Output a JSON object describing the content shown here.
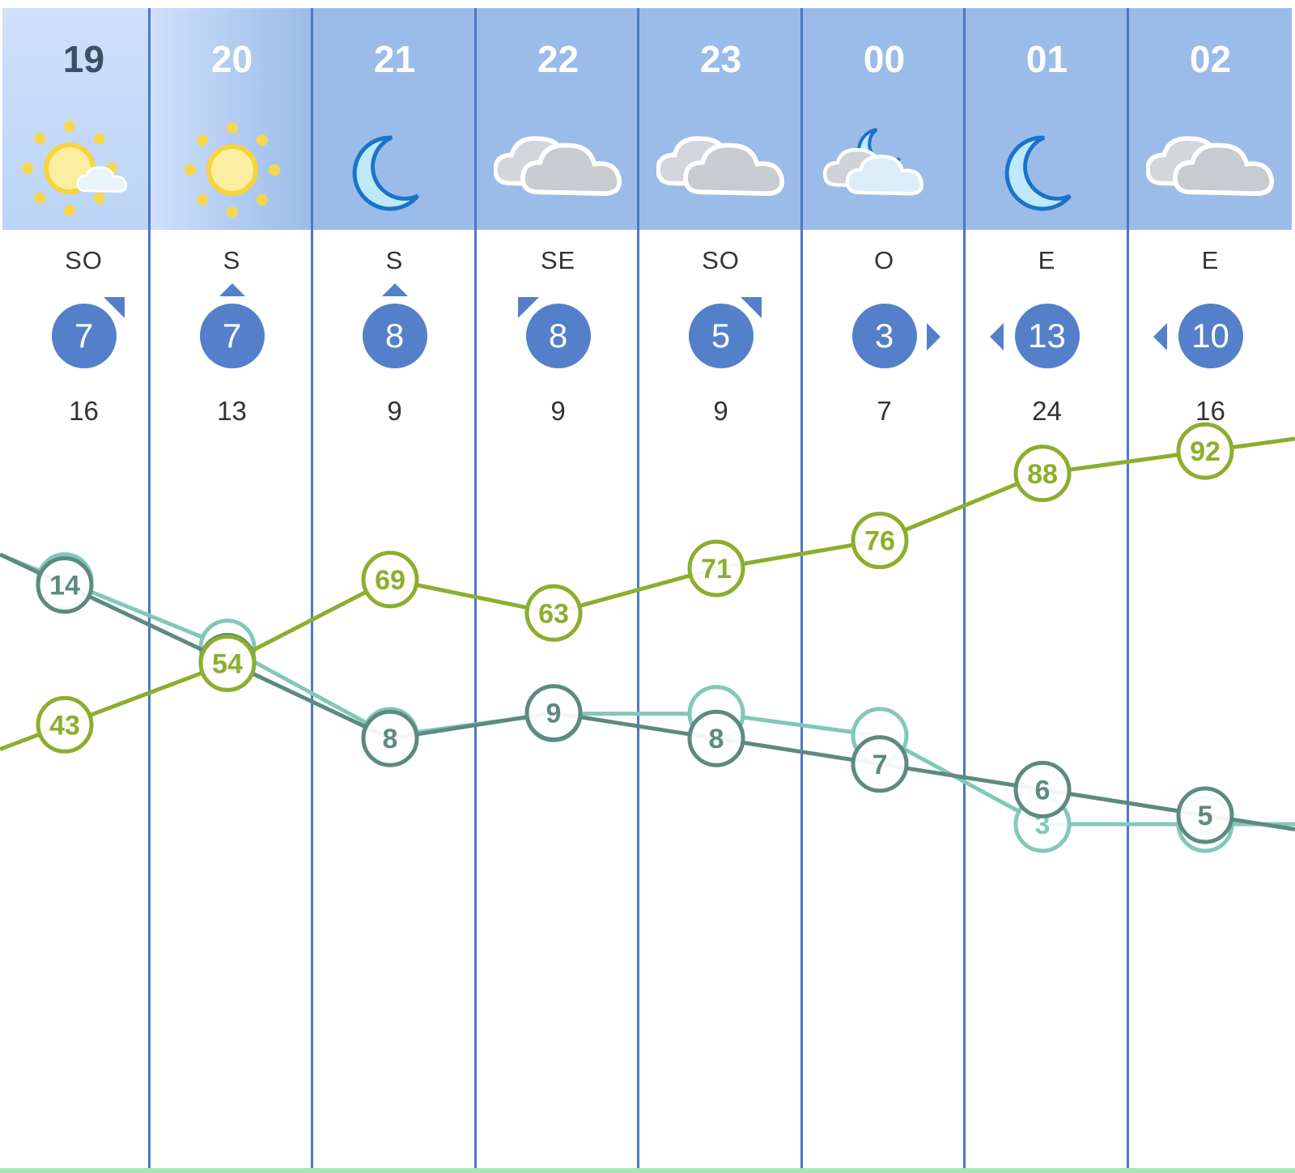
{
  "colors": {
    "header_bg": "#9bbce8",
    "divider": "#4a79c4",
    "wind_badge": "#5480c9",
    "humidity": "#8cae2e",
    "temperature": "#5d8a80",
    "dewpoint": "#82c8b8"
  },
  "columns": [
    {
      "hour": "19",
      "icon": "sun-cloud-icon",
      "dir": "SO",
      "wind": "7",
      "arrow": "ne",
      "gust": "16"
    },
    {
      "hour": "20",
      "icon": "sun-icon",
      "dir": "S",
      "wind": "7",
      "arrow": "n",
      "gust": "13"
    },
    {
      "hour": "21",
      "icon": "moon-icon",
      "dir": "S",
      "wind": "8",
      "arrow": "n",
      "gust": "9"
    },
    {
      "hour": "22",
      "icon": "cloud-icon",
      "dir": "SE",
      "wind": "8",
      "arrow": "nw",
      "gust": "9"
    },
    {
      "hour": "23",
      "icon": "cloud-icon",
      "dir": "SO",
      "wind": "5",
      "arrow": "ne",
      "gust": "9"
    },
    {
      "hour": "00",
      "icon": "moon-cloud-icon",
      "dir": "O",
      "wind": "3",
      "arrow": "e",
      "gust": "7"
    },
    {
      "hour": "01",
      "icon": "moon-icon",
      "dir": "E",
      "wind": "13",
      "arrow": "w",
      "gust": "24"
    },
    {
      "hour": "02",
      "icon": "cloud-icon",
      "dir": "E",
      "wind": "10",
      "arrow": "w",
      "gust": "16"
    }
  ],
  "chart_data": {
    "type": "line",
    "categories": [
      "19",
      "20",
      "21",
      "22",
      "23",
      "00",
      "01",
      "02"
    ],
    "series": [
      {
        "id": "humidity",
        "color": "#8cae2e",
        "values": [
          43,
          54,
          69,
          63,
          71,
          76,
          88,
          92
        ],
        "labels": [
          "43",
          "54",
          "69",
          "63",
          "71",
          "76",
          "88",
          "92"
        ]
      },
      {
        "id": "temperature",
        "color": "#5d8a80",
        "values": [
          14,
          11,
          8,
          9,
          8,
          7,
          6,
          5
        ],
        "labels": [
          "14",
          "11",
          "8",
          "9",
          "8",
          "7",
          "6",
          "5"
        ]
      },
      {
        "id": "dewpoint",
        "color": "#82c8b8",
        "values": [
          14,
          11,
          7,
          8,
          8,
          7,
          3,
          3
        ],
        "labels": [
          "",
          "",
          "7",
          "8",
          "",
          "",
          "3",
          "3"
        ]
      }
    ]
  }
}
